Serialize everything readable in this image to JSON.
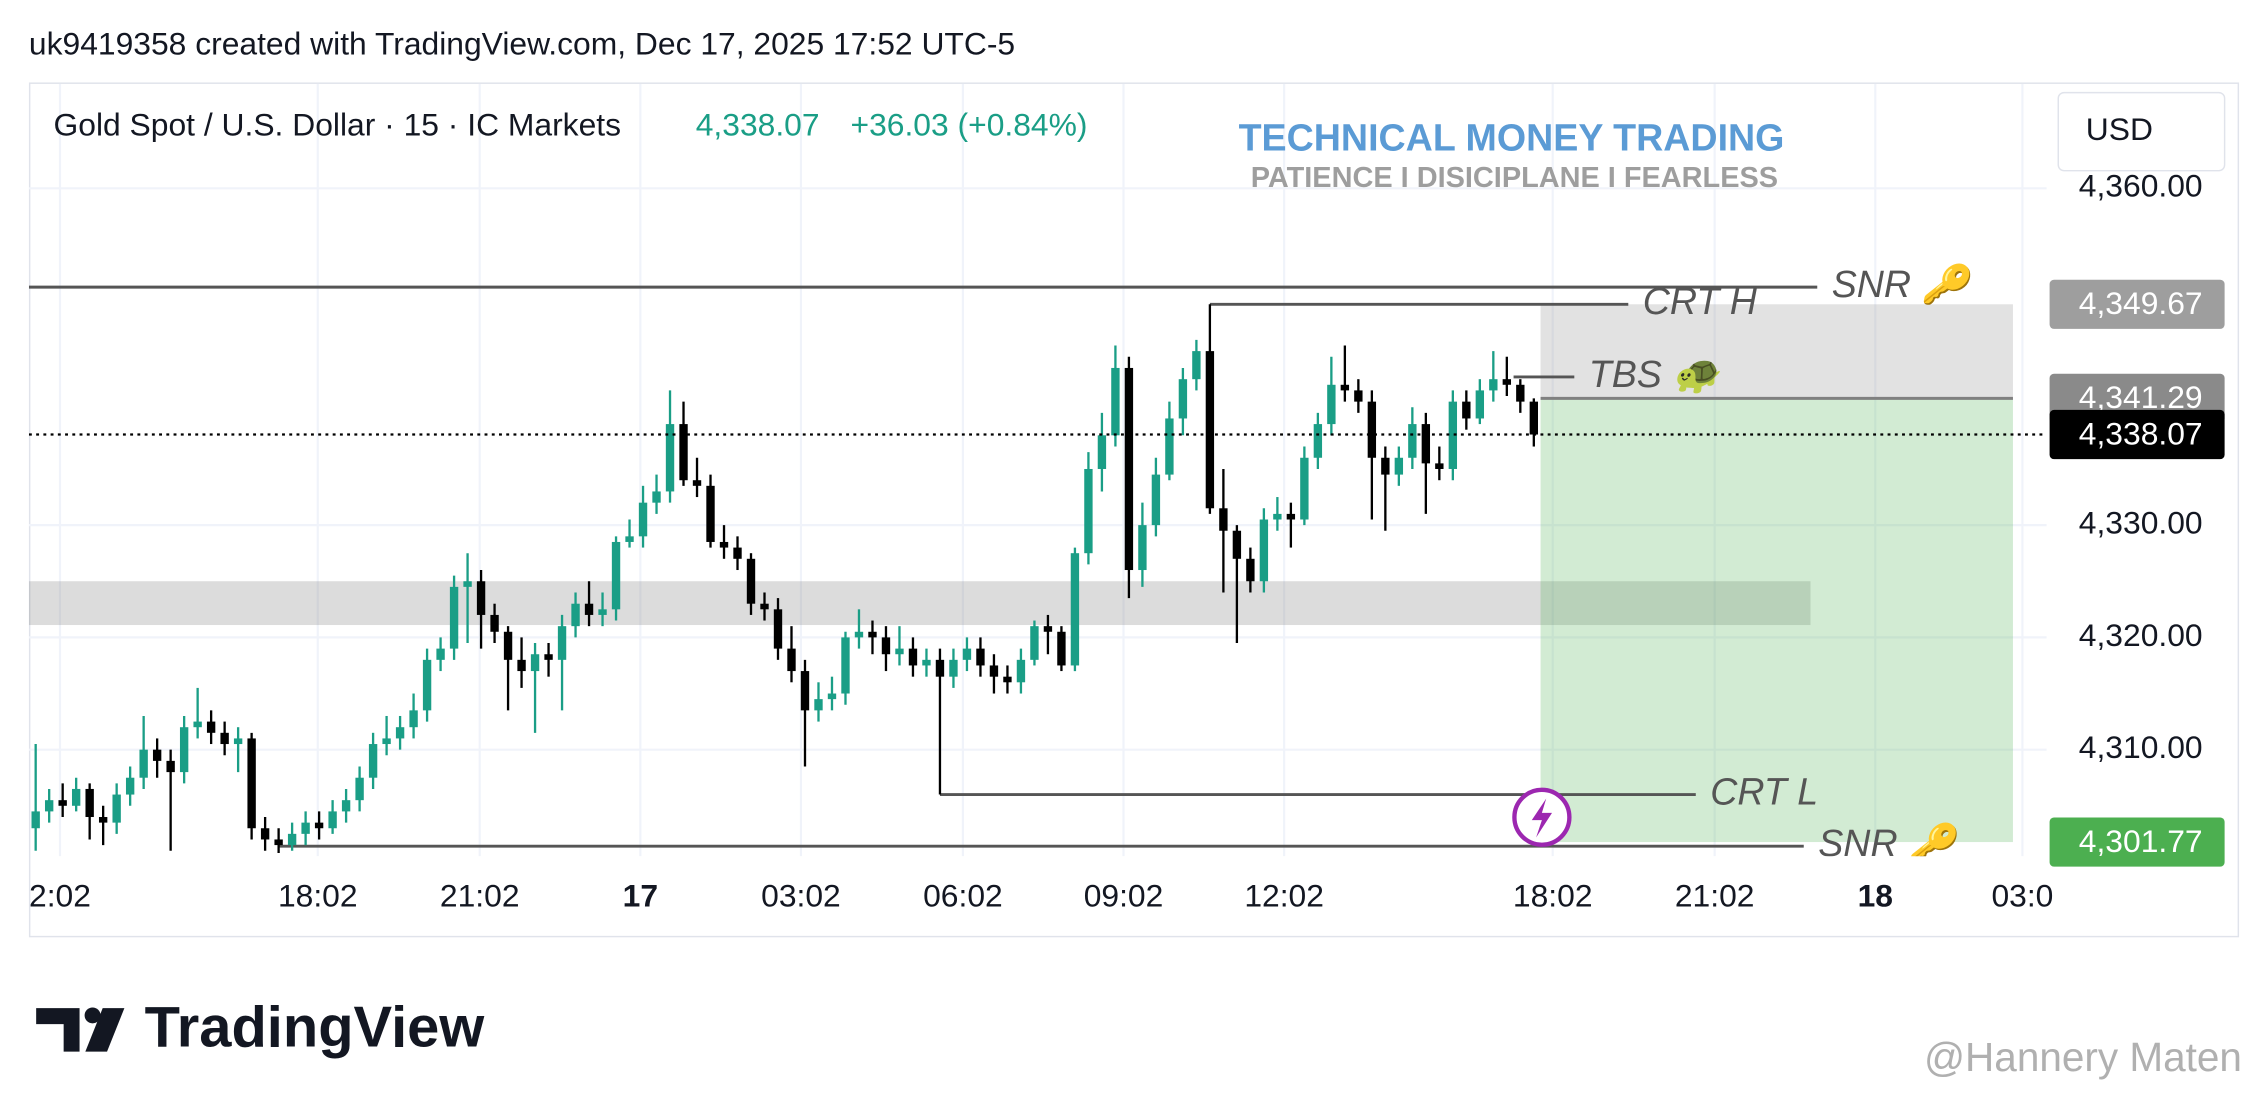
{
  "chart_data": {
    "type": "candlestick",
    "attribution": "uk9419358 created with TradingView.com, Dec 17, 2025 17:52 UTC-5",
    "symbol": "Gold Spot / U.S. Dollar · 15 · IC Markets",
    "last_price_label": "4,338.07",
    "change_label": "+36.03 (+0.84%)",
    "title": "TECHNICAL MONEY TRADING",
    "subtitle": "PATIENCE I DISICIPLANE I FEARLESS",
    "currency": "USD",
    "brand": "TradingView",
    "watermark": "@Hannery Maten",
    "up_color": "#1a9e86",
    "down_color": "#000000",
    "grid": true,
    "xlim": [
      -0.5,
      149
    ],
    "ylim": [
      4300.5,
      4369.3
    ],
    "xticks": [
      {
        "value": 1.8,
        "label": "2:02"
      },
      {
        "value": 20.9,
        "label": "18:02"
      },
      {
        "value": 32.9,
        "label": "21:02"
      },
      {
        "value": 44.8,
        "label": "17"
      },
      {
        "value": 56.7,
        "label": "03:02"
      },
      {
        "value": 68.7,
        "label": "06:02"
      },
      {
        "value": 80.6,
        "label": "09:02"
      },
      {
        "value": 92.5,
        "label": "12:02"
      },
      {
        "value": 112.4,
        "label": "18:02"
      },
      {
        "value": 124.4,
        "label": "21:02"
      },
      {
        "value": 136.3,
        "label": "18"
      },
      {
        "value": 147.2,
        "label": "03:0"
      }
    ],
    "yticks": [
      {
        "value": 4310,
        "label": "4,310.00"
      },
      {
        "value": 4320,
        "label": "4,320.00"
      },
      {
        "value": 4330,
        "label": "4,330.00"
      },
      {
        "value": 4360,
        "label": "4,360.00"
      }
    ],
    "ohlc": {
      "open": [
        4303,
        4304.5,
        4305.5,
        4305,
        4306.5,
        4304,
        4303.5,
        4306,
        4307.5,
        4310,
        4309,
        4308,
        4312,
        4312.5,
        4311.5,
        4310.5,
        4311,
        4303,
        4302,
        4301.5,
        4302.5,
        4303.5,
        4303,
        4304.5,
        4305.5,
        4307.5,
        4310.5,
        4311,
        4312,
        4313.5,
        4318,
        4319,
        4324.5,
        4325,
        4322,
        4320.5,
        4318,
        4317,
        4318.5,
        4318,
        4321,
        4323,
        4322,
        4322.5,
        4328.5,
        4329,
        4332,
        4333,
        4339,
        4334,
        4333.5,
        4328.5,
        4328,
        4327,
        4323,
        4322.5,
        4319,
        4317,
        4313.5,
        4314.5,
        4315,
        4320,
        4320.5,
        4320,
        4318.5,
        4319,
        4317.5,
        4318,
        4316.5,
        4318,
        4319,
        4317.5,
        4316.5,
        4316,
        4318,
        4321,
        4320.5,
        4317.5,
        4327.5,
        4335,
        4338,
        4344,
        4326,
        4330,
        4334.5,
        4339.5,
        4343,
        4345.5,
        4331.5,
        4329.5,
        4327,
        4325,
        4330.5,
        4331,
        4330.5,
        4336,
        4339,
        4342.5,
        4342,
        4341,
        4336,
        4334.5,
        4336,
        4339,
        4335.5,
        4335,
        4341,
        4339.5,
        4342,
        4343,
        4342.5,
        4341
      ],
      "high": [
        4310.5,
        4306.5,
        4307,
        4307.5,
        4307,
        4305,
        4307,
        4308.5,
        4313,
        4311,
        4310,
        4313,
        4315.5,
        4313.5,
        4312.5,
        4312,
        4311.5,
        4304,
        4303,
        4303.5,
        4304.5,
        4304.5,
        4305.5,
        4306.5,
        4308.5,
        4311.5,
        4313,
        4313,
        4315,
        4319,
        4320,
        4325.5,
        4327.5,
        4326,
        4323,
        4321,
        4320,
        4319.5,
        4319.5,
        4322,
        4324,
        4325,
        4324,
        4329,
        4330.5,
        4333.5,
        4334.5,
        4342,
        4341,
        4336,
        4334.5,
        4330,
        4329,
        4327.5,
        4324,
        4323.5,
        4321,
        4318,
        4316,
        4316.5,
        4320.5,
        4322.5,
        4321.5,
        4321,
        4321,
        4320,
        4319,
        4319,
        4319,
        4320,
        4320,
        4318.5,
        4317.5,
        4319,
        4321.5,
        4322,
        4321,
        4328,
        4336.5,
        4340,
        4346,
        4345,
        4332,
        4336,
        4341,
        4344,
        4346.5,
        4349.67,
        4335,
        4330,
        4328,
        4331.5,
        4332.5,
        4332,
        4337,
        4340,
        4345,
        4346,
        4343,
        4342,
        4337,
        4337,
        4340.5,
        4340,
        4337,
        4342,
        4342,
        4343,
        4345.5,
        4345,
        4343,
        4341.29
      ],
      "low": [
        4301,
        4303.5,
        4304,
        4304.5,
        4302,
        4301.5,
        4302.5,
        4305,
        4306.5,
        4307.5,
        4301,
        4307,
        4311,
        4310.5,
        4309.5,
        4308,
        4302,
        4301,
        4300.8,
        4301,
        4301.5,
        4302,
        4302.5,
        4303.5,
        4304.5,
        4306.5,
        4309.5,
        4310,
        4311,
        4312.5,
        4317,
        4318,
        4319.5,
        4319,
        4319.5,
        4313.5,
        4315.5,
        4311.5,
        4316.5,
        4313.5,
        4320,
        4321,
        4321,
        4321.5,
        4328,
        4328,
        4331,
        4332,
        4333.5,
        4332.5,
        4328,
        4327,
        4326,
        4322,
        4321.5,
        4318,
        4316,
        4308.5,
        4312.5,
        4313.5,
        4314,
        4319,
        4318.5,
        4317,
        4317.5,
        4316.5,
        4316.5,
        4306,
        4315.5,
        4317,
        4316.5,
        4315,
        4315,
        4315,
        4317.5,
        4318.5,
        4317,
        4317,
        4326.5,
        4333,
        4337,
        4323.5,
        4324.5,
        4329,
        4334,
        4338,
        4342,
        4331,
        4324,
        4319.5,
        4324,
        4324,
        4329.5,
        4328,
        4330,
        4335,
        4338,
        4341,
        4340,
        4330.5,
        4329.5,
        4333.5,
        4335,
        4331,
        4334,
        4334,
        4338.5,
        4339,
        4341,
        4341.5,
        4340,
        4337
      ],
      "close": [
        4304.5,
        4305.5,
        4305,
        4306.5,
        4304,
        4303.5,
        4306,
        4307.5,
        4310,
        4309,
        4308,
        4312,
        4312.5,
        4311.5,
        4310.5,
        4311,
        4303,
        4302,
        4301.5,
        4302.5,
        4303.5,
        4303,
        4304.5,
        4305.5,
        4307.5,
        4310.5,
        4311,
        4312,
        4313.5,
        4318,
        4319,
        4324.5,
        4325,
        4322,
        4320.5,
        4318,
        4317,
        4318.5,
        4318,
        4321,
        4323,
        4322,
        4322.5,
        4328.5,
        4329,
        4332,
        4333,
        4339,
        4334,
        4333.5,
        4328.5,
        4328,
        4327,
        4323,
        4322.5,
        4319,
        4317,
        4313.5,
        4314.5,
        4315,
        4320,
        4320.5,
        4320,
        4318.5,
        4319,
        4317.5,
        4318,
        4316.5,
        4318,
        4319,
        4317.5,
        4316.5,
        4316,
        4318,
        4321,
        4320.5,
        4317.5,
        4327.5,
        4335,
        4338,
        4344,
        4326,
        4330,
        4334.5,
        4339.5,
        4343,
        4345.5,
        4331.5,
        4329.5,
        4327,
        4325,
        4330.5,
        4331,
        4330.5,
        4336,
        4339,
        4342.5,
        4342,
        4341,
        4336,
        4334.5,
        4336,
        4339,
        4335.5,
        4335,
        4341,
        4339.5,
        4342,
        4343,
        4342.5,
        4341,
        4338.07
      ]
    },
    "zone": {
      "from": -0.5,
      "to": 131.5,
      "low": 4321.1,
      "high": 4325,
      "color": "rgba(130,130,130,0.28)"
    },
    "position": {
      "from": 111.5,
      "to": 146.5,
      "entry": 4341.29,
      "stop": 4349.67,
      "target": 4301.77,
      "profit_color": "rgba(76,175,80,0.25)",
      "loss_color": "rgba(140,140,140,0.25)"
    },
    "annotations": [
      {
        "label": "SNR 🔑",
        "value": 4351.2,
        "from": -0.5,
        "to": 132
      },
      {
        "label": "CRT H",
        "value": 4349.67,
        "from": 87,
        "to": 118
      },
      {
        "label": "TBS 🐢",
        "value": 4343.2,
        "from": 109.5,
        "to": 114
      },
      {
        "label": "CRT L",
        "value": 4306,
        "from": 67,
        "to": 123
      },
      {
        "label": "SNR 🔑",
        "value": 4301.4,
        "from": 18,
        "to": 131
      }
    ],
    "price_labels": [
      {
        "value": 4349.67,
        "label": "4,349.67",
        "color": "#9e9e9e"
      },
      {
        "value": 4341.29,
        "label": "4,341.29",
        "color": "#8a8a8a"
      },
      {
        "value": 4338.07,
        "label": "4,338.07",
        "color": "#000000"
      },
      {
        "value": 4301.77,
        "label": "4,301.77",
        "color": "#4caf50"
      }
    ]
  }
}
